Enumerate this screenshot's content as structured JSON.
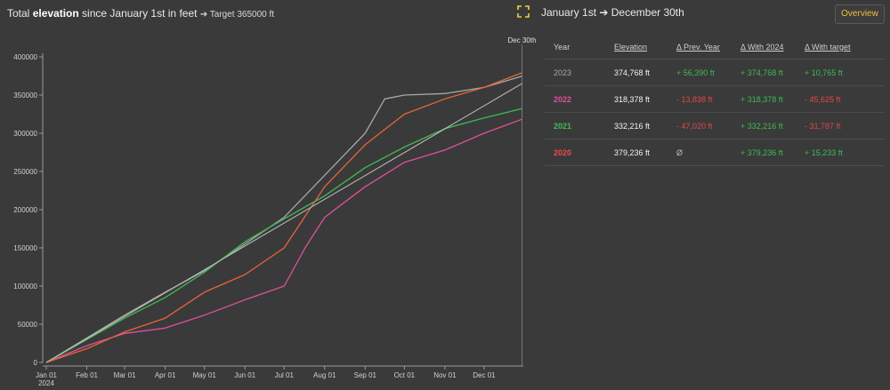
{
  "header": {
    "title_pre": "Total ",
    "title_bold": "elevation",
    "title_post": " since January 1st in feet",
    "target_text": "➔ Target 365000 ft",
    "range_text": "January 1st ➔ December 30th",
    "overview_label": "Overview"
  },
  "table": {
    "headers": [
      "Year",
      "Elevation",
      "Δ Prev. Year",
      "Δ With 2024",
      "Δ With target"
    ],
    "rows": [
      {
        "year": "2023",
        "elevation": "374,768 ft",
        "prev": "+ 56,390 ft",
        "with2024": "+ 374,768 ft",
        "target": "+ 10,765 ft"
      },
      {
        "year": "2022",
        "elevation": "318,378 ft",
        "prev": "- 13,838 ft",
        "with2024": "+ 318,378 ft",
        "target": "- 45,625 ft"
      },
      {
        "year": "2021",
        "elevation": "332,216 ft",
        "prev": "- 47,020 ft",
        "with2024": "+ 332,216 ft",
        "target": "- 31,787 ft"
      },
      {
        "year": "2020",
        "elevation": "379,236 ft",
        "prev": "Ø",
        "with2024": "+ 379,236 ft",
        "target": "+ 15,233 ft"
      }
    ]
  },
  "colors": {
    "2023": "#a8a8a8",
    "2022": "#e0509c",
    "2021": "#3dbb55",
    "2020": "#e8643c",
    "target": "#bfbfbf"
  },
  "chart_data": {
    "type": "line",
    "x_unit": "day of year 2024",
    "xlim": [
      0,
      365
    ],
    "ylim": [
      0,
      400000
    ],
    "yticks": [
      0,
      50000,
      100000,
      150000,
      200000,
      250000,
      300000,
      350000,
      400000
    ],
    "ytick_labels": [
      "0",
      "50000",
      "100000",
      "150000",
      "200000",
      "250000",
      "300000",
      "350000",
      "400000"
    ],
    "xticks": [
      0,
      31,
      60,
      91,
      121,
      152,
      182,
      213,
      244,
      274,
      305,
      335
    ],
    "xtick_labels": [
      "Jan 01",
      "Feb 01",
      "Mar 01",
      "Apr 01",
      "May 01",
      "Jun 01",
      "Jul 01",
      "Aug 01",
      "Sep 01",
      "Oct 01",
      "Nov 01",
      "Dec 01"
    ],
    "x_sublabel": "2024",
    "marker_label": "Dec 30th",
    "marker_x": 364,
    "series": [
      {
        "name": "2023",
        "x": [
          0,
          31,
          60,
          91,
          121,
          152,
          182,
          213,
          244,
          259,
          274,
          305,
          335,
          364
        ],
        "y": [
          0,
          32000,
          62000,
          92000,
          120000,
          155000,
          190000,
          245000,
          300000,
          345000,
          350000,
          352000,
          360000,
          374768
        ]
      },
      {
        "name": "2022",
        "x": [
          0,
          31,
          60,
          91,
          121,
          152,
          182,
          198,
          213,
          244,
          274,
          305,
          335,
          364
        ],
        "y": [
          0,
          22000,
          38000,
          45000,
          62000,
          82000,
          100000,
          150000,
          190000,
          230000,
          262000,
          278000,
          300000,
          318378
        ]
      },
      {
        "name": "2021",
        "x": [
          0,
          31,
          60,
          91,
          121,
          152,
          182,
          213,
          244,
          274,
          305,
          335,
          364
        ],
        "y": [
          0,
          30000,
          58000,
          85000,
          118000,
          158000,
          188000,
          218000,
          255000,
          282000,
          306000,
          320000,
          332216
        ]
      },
      {
        "name": "2020",
        "x": [
          0,
          31,
          60,
          91,
          121,
          152,
          182,
          213,
          244,
          274,
          305,
          335,
          364
        ],
        "y": [
          0,
          18000,
          40000,
          58000,
          92000,
          115000,
          150000,
          230000,
          285000,
          325000,
          345000,
          360000,
          379236
        ]
      },
      {
        "name": "Target",
        "x": [
          0,
          364
        ],
        "y": [
          0,
          365000
        ]
      }
    ]
  }
}
